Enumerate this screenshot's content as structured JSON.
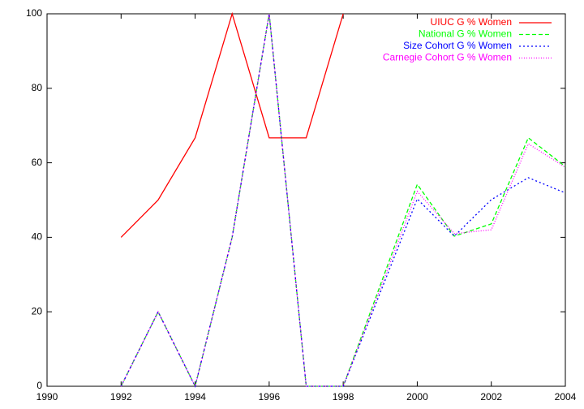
{
  "chart_data": {
    "type": "line",
    "x": [
      1992,
      1993,
      1994,
      1995,
      1996,
      1997,
      1998,
      2000,
      2001,
      2002,
      2003,
      2004
    ],
    "series": [
      {
        "name": "UIUC G % Women",
        "color": "#ff0000",
        "dash": "solid",
        "values": [
          40,
          50,
          66.7,
          100,
          66.7,
          66.7,
          100,
          null,
          null,
          null,
          null,
          null
        ]
      },
      {
        "name": "National G % Women",
        "color": "#00ff00",
        "dash": "dashed",
        "values": [
          0,
          20,
          0,
          40,
          100,
          0,
          0,
          54.2,
          40.3,
          43.6,
          66.7,
          59
        ]
      },
      {
        "name": "Size Cohort G % Women",
        "color": "#0000ff",
        "dash": "dotted",
        "values": [
          0,
          20,
          0,
          40,
          100,
          0,
          0,
          50.3,
          40.3,
          50.1,
          56,
          51.9
        ]
      },
      {
        "name": "Carnegie Cohort G % Women",
        "color": "#ff00ff",
        "dash": "fine-dotted",
        "values": [
          0,
          20,
          0,
          40,
          100,
          0,
          0,
          52.3,
          41,
          42,
          65.1,
          58.8
        ]
      }
    ],
    "xlim": [
      1990,
      2004
    ],
    "xticks": [
      1990,
      1992,
      1994,
      1996,
      1998,
      2000,
      2002,
      2004
    ],
    "ylim": [
      0,
      100
    ],
    "yticks": [
      0,
      20,
      40,
      60,
      80,
      100
    ],
    "legend": "top-right"
  }
}
